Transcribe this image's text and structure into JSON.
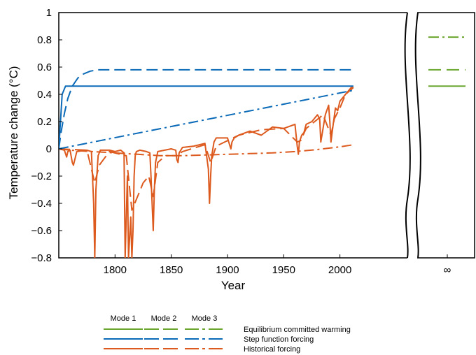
{
  "chart_data": {
    "type": "line",
    "xlabel": "Year",
    "ylabel": "Temperature change (°C)",
    "xlim": [
      1750,
      2060
    ],
    "ylim": [
      -0.8,
      1.0
    ],
    "x_ticks": [
      1800,
      1850,
      1900,
      1950,
      2000
    ],
    "x_tick_labels": [
      "1800",
      "1850",
      "1900",
      "1950",
      "2000"
    ],
    "y_ticks": [
      -0.8,
      -0.6,
      -0.4,
      -0.2,
      0,
      0.2,
      0.4,
      0.6,
      0.8,
      1
    ],
    "y_tick_labels": [
      "−0.8",
      "−0.6",
      "−0.4",
      "−0.2",
      "0",
      "0.2",
      "0.4",
      "0.6",
      "0.8",
      "1"
    ],
    "break_tick_label": "∞",
    "grid": false,
    "colors": {
      "green": "#6aa62e",
      "blue": "#0a6ab8",
      "orange": "#dd5a1e"
    },
    "series": [
      {
        "group": "Step function forcing",
        "mode": "Mode 1",
        "color": "blue",
        "dash": "solid",
        "x": [
          1750,
          1753,
          1756,
          2012
        ],
        "y": [
          0.0,
          0.4,
          0.46,
          0.46
        ]
      },
      {
        "group": "Step function forcing",
        "mode": "Mode 2",
        "color": "blue",
        "dash": "dash",
        "x": [
          1750,
          1752,
          1755,
          1758,
          1762,
          1767,
          1772,
          1778,
          1785,
          1795,
          2012
        ],
        "y": [
          0.0,
          0.12,
          0.26,
          0.37,
          0.46,
          0.52,
          0.55,
          0.57,
          0.58,
          0.58,
          0.58
        ]
      },
      {
        "group": "Step function forcing",
        "mode": "Mode 3",
        "color": "blue",
        "dash": "dashdot",
        "x": [
          1750,
          2012
        ],
        "y": [
          0.0,
          0.43
        ]
      },
      {
        "group": "Historical forcing",
        "mode": "Mode 1",
        "color": "orange",
        "dash": "solid",
        "x": [
          1750,
          1755,
          1757,
          1758,
          1760,
          1762,
          1763,
          1766,
          1775,
          1779,
          1781,
          1782,
          1783,
          1785,
          1787,
          1795,
          1800,
          1805,
          1808,
          1809,
          1810,
          1811,
          1812,
          1814,
          1815,
          1816,
          1817,
          1818,
          1819,
          1822,
          1828,
          1831,
          1832,
          1833,
          1834,
          1835,
          1836,
          1838,
          1850,
          1854,
          1855,
          1856,
          1857,
          1860,
          1870,
          1880,
          1883,
          1884,
          1885,
          1886,
          1888,
          1890,
          1900,
          1903,
          1904,
          1906,
          1910,
          1920,
          1930,
          1940,
          1950,
          1960,
          1962,
          1963,
          1964,
          1966,
          1968,
          1970,
          1975,
          1980,
          1982,
          1983,
          1985,
          1987,
          1990,
          1991,
          1992,
          1994,
          1996,
          1998,
          2000,
          2005,
          2010,
          2012
        ],
        "y": [
          0.0,
          -0.01,
          -0.06,
          -0.02,
          -0.01,
          -0.1,
          -0.12,
          -0.02,
          -0.01,
          -0.02,
          -0.4,
          -0.8,
          -0.3,
          -0.05,
          -0.01,
          -0.01,
          -0.02,
          -0.01,
          -0.03,
          -0.8,
          -0.5,
          -0.2,
          -0.8,
          -0.5,
          -0.8,
          -0.6,
          -0.2,
          -0.05,
          -0.02,
          -0.01,
          -0.02,
          -0.03,
          -0.2,
          -0.4,
          -0.6,
          -0.3,
          -0.1,
          -0.02,
          0.0,
          -0.01,
          -0.08,
          -0.1,
          -0.03,
          0.01,
          0.02,
          0.04,
          -0.15,
          -0.4,
          -0.2,
          -0.05,
          0.05,
          0.08,
          0.08,
          0.0,
          0.05,
          0.08,
          0.1,
          0.13,
          0.1,
          0.16,
          0.15,
          0.18,
          0.02,
          -0.04,
          0.05,
          0.1,
          0.12,
          0.18,
          0.2,
          0.25,
          0.22,
          0.05,
          0.15,
          0.25,
          0.32,
          0.2,
          0.05,
          0.18,
          0.3,
          0.28,
          0.35,
          0.4,
          0.45,
          0.45
        ]
      },
      {
        "group": "Historical forcing",
        "mode": "Mode 2",
        "color": "orange",
        "dash": "dash",
        "x": [
          1750,
          1775,
          1782,
          1786,
          1795,
          1810,
          1815,
          1820,
          1825,
          1830,
          1834,
          1838,
          1845,
          1855,
          1860,
          1880,
          1885,
          1890,
          1910,
          1930,
          1950,
          1962,
          1965,
          1970,
          1985,
          1992,
          1995,
          2000,
          2005,
          2012
        ],
        "y": [
          0.0,
          -0.01,
          -0.25,
          -0.12,
          -0.02,
          -0.05,
          -0.45,
          -0.35,
          -0.25,
          -0.2,
          -0.35,
          -0.1,
          -0.05,
          -0.05,
          -0.02,
          0.03,
          -0.1,
          0.02,
          0.1,
          0.14,
          0.15,
          0.05,
          0.06,
          0.15,
          0.25,
          0.1,
          0.22,
          0.3,
          0.4,
          0.45
        ]
      },
      {
        "group": "Historical forcing",
        "mode": "Mode 3",
        "color": "orange",
        "dash": "dashdot",
        "x": [
          1750,
          1760,
          1780,
          1800,
          1820,
          1840,
          1860,
          1880,
          1900,
          1920,
          1940,
          1960,
          1980,
          2000,
          2012
        ],
        "y": [
          0.0,
          -0.01,
          -0.02,
          -0.03,
          -0.04,
          -0.05,
          -0.05,
          -0.045,
          -0.04,
          -0.035,
          -0.03,
          -0.02,
          -0.005,
          0.015,
          0.03
        ]
      }
    ],
    "equilibrium": [
      {
        "mode": "Mode 1",
        "color": "green",
        "dash": "solid",
        "y": 0.46
      },
      {
        "mode": "Mode 2",
        "color": "green",
        "dash": "dash",
        "y": 0.58
      },
      {
        "mode": "Mode 3",
        "color": "green",
        "dash": "dashdot",
        "y": 0.82
      }
    ],
    "legend": {
      "placement": "bottom",
      "columns": [
        "Mode 1",
        "Mode 2",
        "Mode 3"
      ],
      "rows": [
        {
          "label": "Equilibrium committed warming",
          "color": "green"
        },
        {
          "label": "Step function forcing",
          "color": "blue"
        },
        {
          "label": "Historical forcing",
          "color": "orange"
        }
      ]
    }
  }
}
